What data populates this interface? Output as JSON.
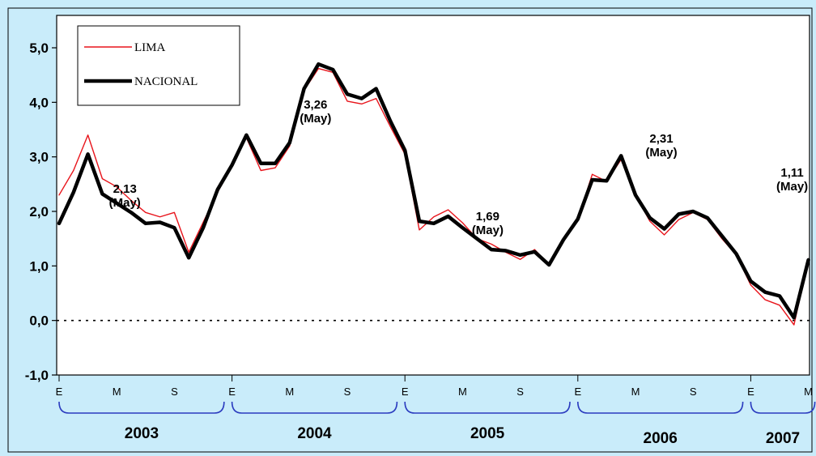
{
  "chart_data": {
    "type": "line",
    "ylim": [
      -1.0,
      5.0
    ],
    "yticks": [
      "-1,0",
      "0,0",
      "1,0",
      "2,0",
      "3,0",
      "4,0",
      "5,0"
    ],
    "grid": false,
    "legend_position": "top-left",
    "month_labels": [
      "E",
      "M",
      "S",
      "E",
      "M",
      "S",
      "E",
      "M",
      "S",
      "E",
      "M",
      "S",
      "E",
      "M"
    ],
    "years": [
      "2003",
      "2004",
      "2005",
      "2006",
      "2007"
    ],
    "series": [
      {
        "name": "LIMA",
        "color": "#e8141b",
        "values": [
          2.3,
          2.75,
          3.4,
          2.6,
          2.45,
          2.2,
          1.98,
          1.9,
          1.98,
          1.25,
          1.8,
          2.35,
          2.85,
          3.35,
          2.75,
          2.8,
          3.2,
          4.22,
          4.62,
          4.55,
          4.02,
          3.97,
          4.07,
          3.55,
          3.05,
          1.66,
          1.9,
          2.03,
          1.79,
          1.5,
          1.4,
          1.25,
          1.12,
          1.3,
          1.02,
          1.45,
          1.85,
          2.68,
          2.55,
          2.95,
          2.3,
          1.82,
          1.57,
          1.85,
          1.98,
          1.85,
          1.5,
          1.2,
          0.65,
          0.38,
          0.28,
          -0.08,
          1.11
        ]
      },
      {
        "name": "NACIONAL",
        "color": "#000000",
        "values": [
          1.78,
          2.35,
          3.05,
          2.32,
          2.15,
          1.98,
          1.78,
          1.8,
          1.7,
          1.15,
          1.7,
          2.4,
          2.85,
          3.4,
          2.88,
          2.88,
          3.26,
          4.25,
          4.7,
          4.6,
          4.15,
          4.07,
          4.25,
          3.65,
          3.12,
          1.82,
          1.78,
          1.91,
          1.7,
          1.5,
          1.3,
          1.28,
          1.2,
          1.26,
          1.02,
          1.48,
          1.86,
          2.58,
          2.56,
          3.02,
          2.3,
          1.88,
          1.68,
          1.95,
          2.0,
          1.88,
          1.55,
          1.22,
          0.72,
          0.52,
          0.45,
          0.05,
          1.11
        ]
      }
    ],
    "annotations": [
      {
        "value": "2,13",
        "note": "(May)",
        "index": 4
      },
      {
        "value": "3,26",
        "note": "(May)",
        "index": 16
      },
      {
        "value": "1,69",
        "note": "(May)",
        "index": 28
      },
      {
        "value": "2,31",
        "note": "(May)",
        "index": 40
      },
      {
        "value": "1,11",
        "note": "(May)",
        "index": 52
      }
    ]
  }
}
